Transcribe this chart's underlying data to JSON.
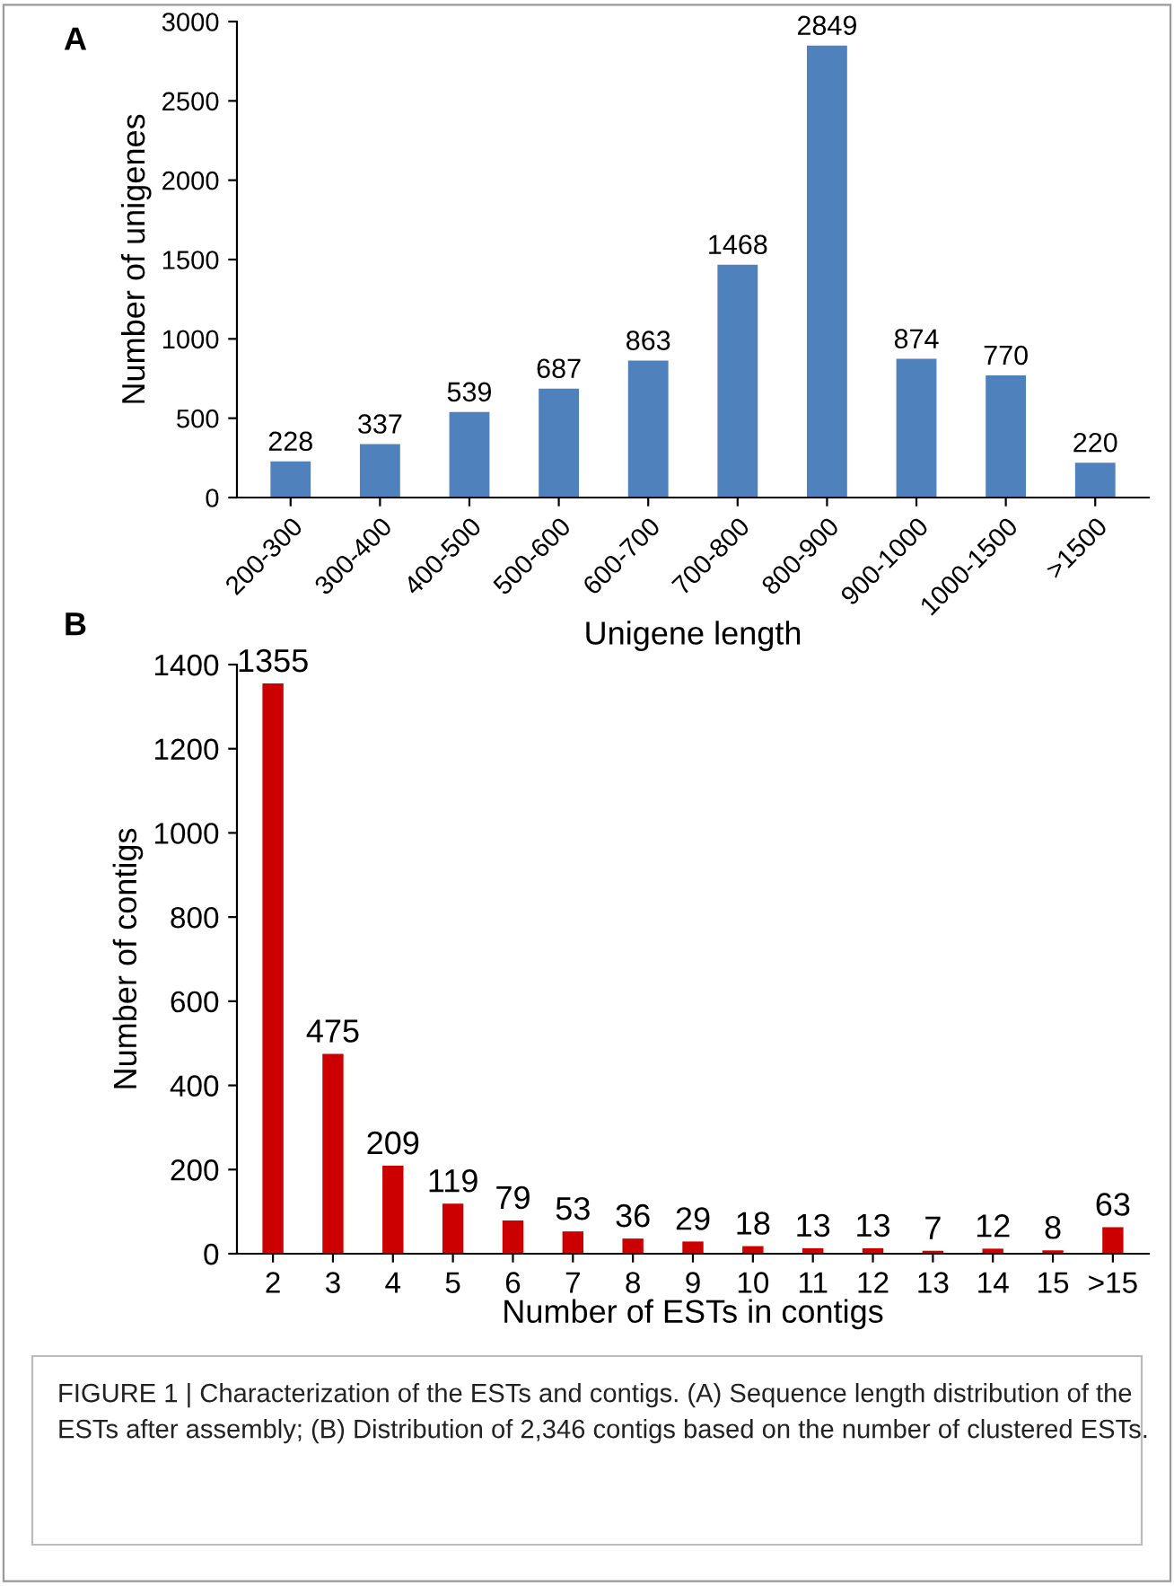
{
  "chart_data": [
    {
      "type": "bar",
      "categories": [
        "200-300",
        "300-400",
        "400-500",
        "500-600",
        "600-700",
        "700-800",
        "800-900",
        "900-1000",
        "1000-1500",
        ">1500"
      ],
      "values": [
        228,
        337,
        539,
        687,
        863,
        1468,
        2849,
        874,
        770,
        220
      ],
      "color": "#4f81bd",
      "data_labels": true,
      "xlabel": "Unigene length",
      "ylabel": "Number of unigenes",
      "ylim": [
        0,
        3000
      ],
      "yticks": [
        0,
        500,
        1000,
        1500,
        2000,
        2500,
        3000
      ],
      "grid": false,
      "annotations": [
        "A"
      ]
    },
    {
      "type": "bar",
      "categories": [
        "2",
        "3",
        "4",
        "5",
        "6",
        "7",
        "8",
        "9",
        "10",
        "11",
        "12",
        "13",
        "14",
        "15",
        ">15"
      ],
      "values": [
        1355,
        475,
        209,
        119,
        79,
        53,
        36,
        29,
        18,
        13,
        13,
        7,
        12,
        8,
        63
      ],
      "color": "#cc0000",
      "data_labels": true,
      "xlabel": "Number of ESTs in contigs",
      "ylabel": "Number of contigs",
      "ylim": [
        0,
        1400
      ],
      "yticks": [
        0,
        200,
        400,
        600,
        800,
        1000,
        1200,
        1400
      ],
      "grid": false,
      "annotations": [
        "B",
        "FIGURE 1 | Characterization of the ESTs and contigs. (A) Sequence length distribution of the ESTs after assembly; (B) Distribution of 2,346 contigs based on the number of clustered ESTs."
      ]
    }
  ]
}
